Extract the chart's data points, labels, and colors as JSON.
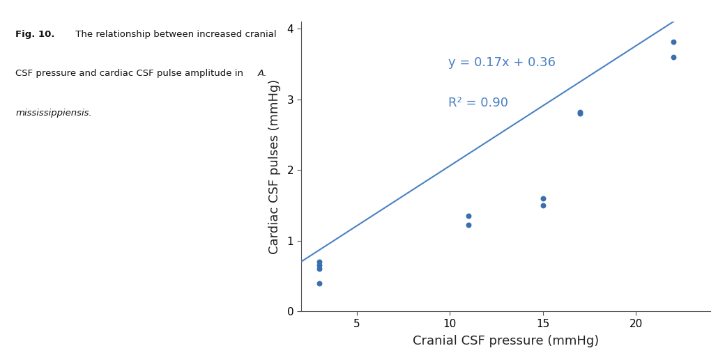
{
  "scatter_x": [
    3,
    3,
    3,
    3,
    11,
    11,
    15,
    15,
    17,
    17,
    22,
    22
  ],
  "scatter_y": [
    0.4,
    0.6,
    0.65,
    0.7,
    1.22,
    1.35,
    1.5,
    1.6,
    2.8,
    2.82,
    3.6,
    3.82
  ],
  "line_x": [
    2,
    23
  ],
  "slope": 0.17,
  "intercept": 0.36,
  "equation_text": "y = 0.17x + 0.36",
  "r2_text": "R² = 0.90",
  "xlabel": "Cranial CSF pressure (mmHg)",
  "ylabel": "Cardiac CSF pulses (mmHg)",
  "xlim": [
    2,
    24
  ],
  "ylim": [
    0,
    4.1
  ],
  "xticks": [
    5,
    10,
    15,
    20
  ],
  "yticks": [
    0,
    1,
    2,
    3,
    4
  ],
  "scatter_color": "#3a6fad",
  "line_color": "#4a80c4",
  "eq_color": "#4a80c4",
  "caption_bg": "#dcdcdc",
  "fig_bg": "#ffffff",
  "caption_fontsize": 9.5,
  "axis_fontsize": 13,
  "eq_fontsize": 13,
  "marker_size": 22
}
